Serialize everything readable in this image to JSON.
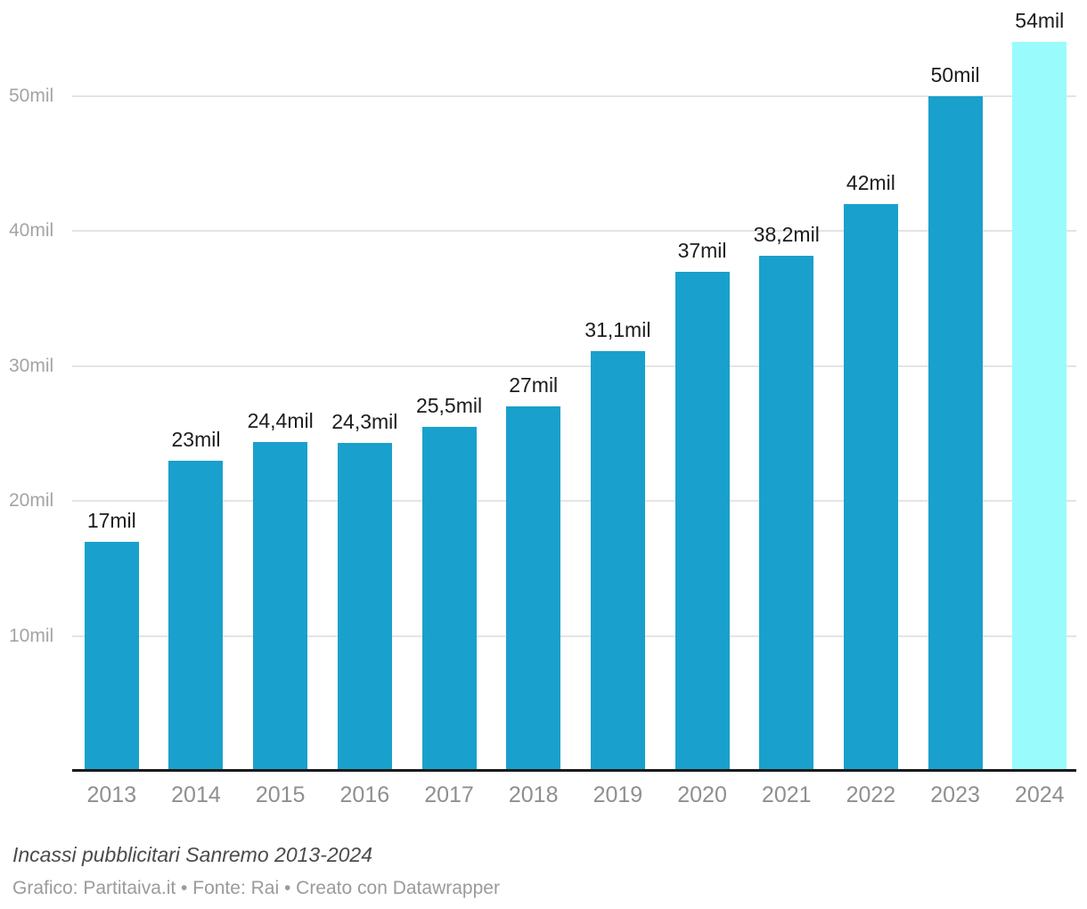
{
  "chart_data": {
    "type": "bar",
    "title": "Incassi pubblicitari Sanremo 2013-2024",
    "categories": [
      "2013",
      "2014",
      "2015",
      "2016",
      "2017",
      "2018",
      "2019",
      "2020",
      "2021",
      "2022",
      "2023",
      "2024"
    ],
    "values": [
      17,
      23,
      24.4,
      24.3,
      25.5,
      27,
      31.1,
      37,
      38.2,
      42,
      50,
      54
    ],
    "value_labels": [
      "17mil",
      "23mil",
      "24,4mil",
      "24,3mil",
      "25,5mil",
      "27mil",
      "31,1mil",
      "37mil",
      "38,2mil",
      "42mil",
      "50mil",
      "54mil"
    ],
    "unit": "mil",
    "y_ticks": [
      10,
      20,
      30,
      40,
      50
    ],
    "y_tick_labels": [
      "10mil",
      "20mil",
      "30mil",
      "40mil",
      "50mil"
    ],
    "ylim": [
      0,
      57
    ],
    "grid": true,
    "legend_position": "none",
    "bar_color": "#1aa0cc",
    "highlight_color": "#99fbfc",
    "highlight_index": 11
  },
  "colors": {
    "gridline": "#e4e4e4",
    "axis_line": "#1a1a1a",
    "y_label": "#a4a4a4",
    "x_label": "#8f8f8f",
    "value_label": "#1c1c1c",
    "notes_text": "#4b4b4b",
    "byline_text": "#9b9b9b",
    "background": "#ffffff"
  },
  "footer": {
    "notes": "Incassi pubblicitari Sanremo 2013-2024",
    "byline": "Grafico: Partitaiva.it • Fonte: Rai • Creato con Datawrapper"
  }
}
